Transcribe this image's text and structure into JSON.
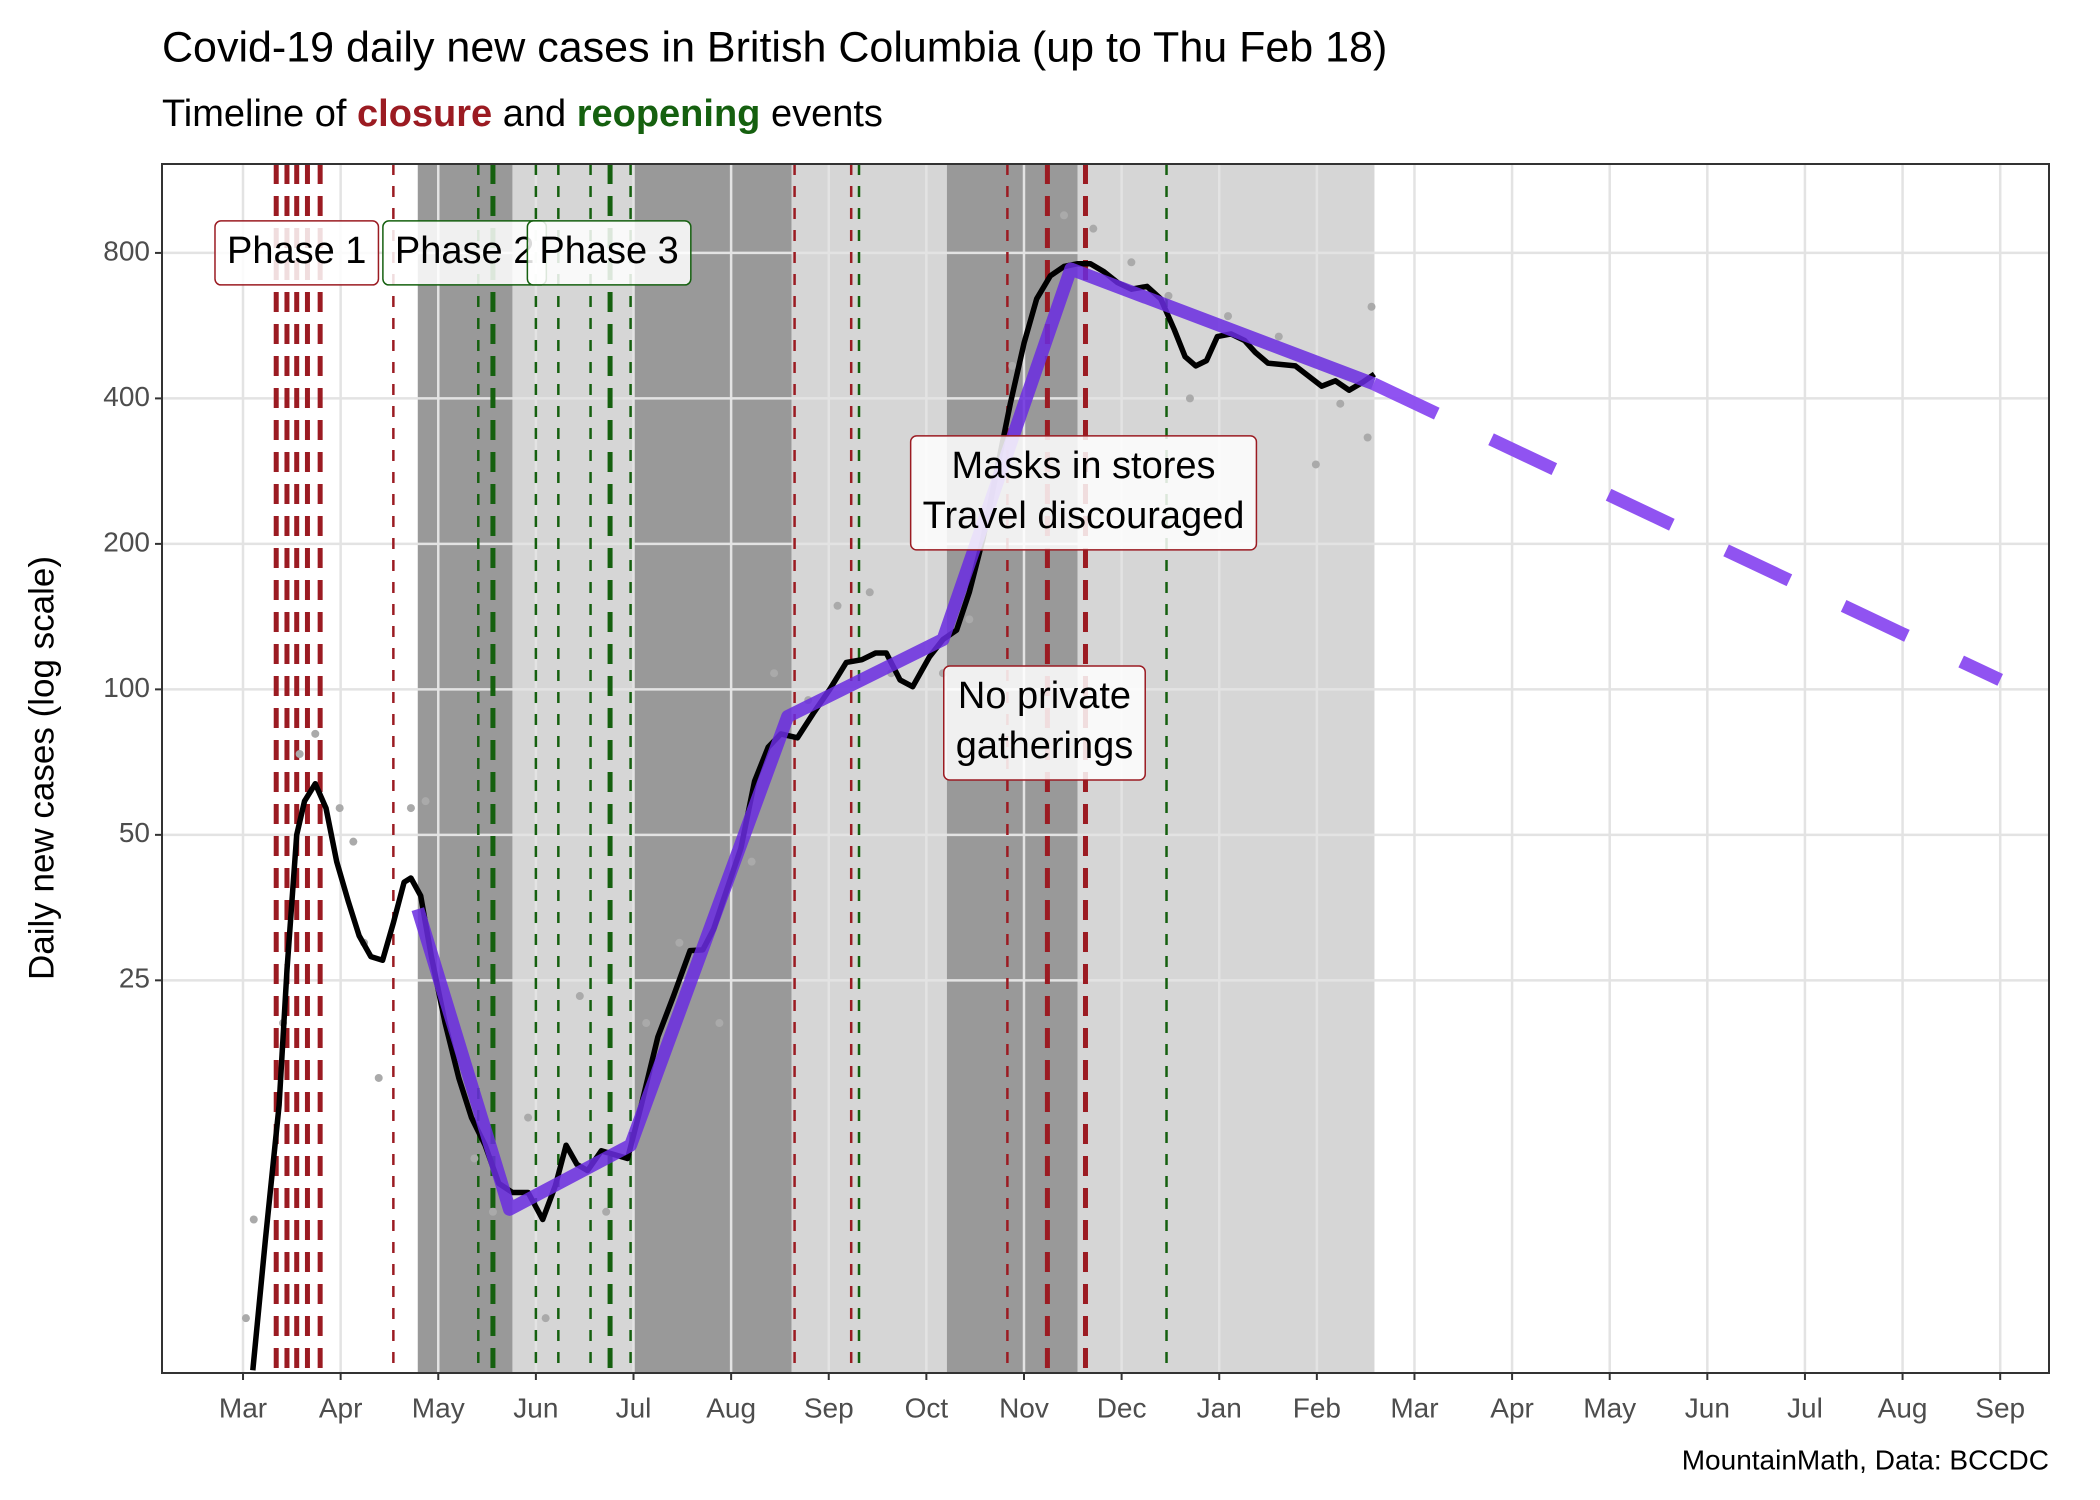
{
  "chart_data": {
    "type": "line",
    "title": "Covid-19 daily new cases in British Columbia (up to Thu Feb 18)",
    "subtitle": [
      {
        "text": "Timeline of "
      },
      {
        "text": "closure",
        "color": "#9b1b22",
        "bold": true
      },
      {
        "text": " and "
      },
      {
        "text": "reopening",
        "color": "#15600f",
        "bold": true
      },
      {
        "text": " events"
      }
    ],
    "y_label": "Daily new cases (log scale)",
    "caption": "MountainMath, Data: BCCDC",
    "log_y": true,
    "grid": true,
    "xlim": [
      -0.83,
      18.5
    ],
    "ylim": [
      3.85,
      1222
    ],
    "xticks": [
      {
        "value": 0,
        "label": "Mar"
      },
      {
        "value": 1,
        "label": "Apr"
      },
      {
        "value": 2,
        "label": "May"
      },
      {
        "value": 3,
        "label": "Jun"
      },
      {
        "value": 4,
        "label": "Jul"
      },
      {
        "value": 5,
        "label": "Aug"
      },
      {
        "value": 6,
        "label": "Sep"
      },
      {
        "value": 7,
        "label": "Oct"
      },
      {
        "value": 8,
        "label": "Nov"
      },
      {
        "value": 9,
        "label": "Dec"
      },
      {
        "value": 10,
        "label": "Jan"
      },
      {
        "value": 11,
        "label": "Feb"
      },
      {
        "value": 12,
        "label": "Mar"
      },
      {
        "value": 13,
        "label": "Apr"
      },
      {
        "value": 14,
        "label": "May"
      },
      {
        "value": 15,
        "label": "Jun"
      },
      {
        "value": 16,
        "label": "Jul"
      },
      {
        "value": 17,
        "label": "Aug"
      },
      {
        "value": 18,
        "label": "Sep"
      }
    ],
    "yticks": [
      25,
      50,
      100,
      200,
      400,
      800
    ],
    "periods": [
      {
        "from": 1.79,
        "to": 2.76,
        "color": "#999999"
      },
      {
        "from": 2.76,
        "to": 4.0,
        "color": "#d6d6d6"
      },
      {
        "from": 4.0,
        "to": 5.62,
        "color": "#999999"
      },
      {
        "from": 5.62,
        "to": 7.21,
        "color": "#d6d6d6"
      },
      {
        "from": 7.21,
        "to": 8.55,
        "color": "#999999"
      },
      {
        "from": 8.55,
        "to": 11.59,
        "color": "#d6d6d6"
      }
    ],
    "events": [
      {
        "x": 0.34,
        "color": "#9b1b22",
        "width": 5
      },
      {
        "x": 0.45,
        "color": "#9b1b22",
        "width": 5
      },
      {
        "x": 0.55,
        "color": "#9b1b22",
        "width": 5
      },
      {
        "x": 0.66,
        "color": "#9b1b22",
        "width": 5
      },
      {
        "x": 0.79,
        "color": "#9b1b22",
        "width": 5
      },
      {
        "x": 1.54,
        "color": "#9b1b22",
        "width": 2.5
      },
      {
        "x": 2.41,
        "color": "#15600f",
        "width": 2.5
      },
      {
        "x": 2.56,
        "color": "#15600f",
        "width": 5
      },
      {
        "x": 3.0,
        "color": "#15600f",
        "width": 2.5
      },
      {
        "x": 3.23,
        "color": "#15600f",
        "width": 2.5
      },
      {
        "x": 3.56,
        "color": "#15600f",
        "width": 2.5
      },
      {
        "x": 3.76,
        "color": "#15600f",
        "width": 5
      },
      {
        "x": 3.97,
        "color": "#15600f",
        "width": 2.5
      },
      {
        "x": 5.65,
        "color": "#9b1b22",
        "width": 2.5
      },
      {
        "x": 6.23,
        "color": "#9b1b22",
        "width": 2.5
      },
      {
        "x": 6.31,
        "color": "#15600f",
        "width": 2.5
      },
      {
        "x": 7.83,
        "color": "#9b1b22",
        "width": 2.5
      },
      {
        "x": 8.24,
        "color": "#9b1b22",
        "width": 5
      },
      {
        "x": 8.63,
        "color": "#9b1b22",
        "width": 5
      },
      {
        "x": 9.46,
        "color": "#15600f",
        "width": 2.5
      }
    ],
    "series": [
      {
        "kind": "points",
        "color": "#aaaaaa",
        "x": [
          0.03,
          0.11,
          0.41,
          0.58,
          0.74,
          0.99,
          1.13,
          1.24,
          1.39,
          1.72,
          1.87,
          2.15,
          2.37,
          2.56,
          2.92,
          3.1,
          3.45,
          3.72,
          4.13,
          4.47,
          4.88,
          5.21,
          5.44,
          5.79,
          6.09,
          6.42,
          6.64,
          7.17,
          7.44,
          7.88,
          8.41,
          8.71,
          9.1,
          9.48,
          9.7,
          10.09,
          10.61,
          10.99,
          11.24,
          11.52,
          11.56
        ],
        "values": [
          5.0,
          8.0,
          20.4,
          73.5,
          80.9,
          56.8,
          48.4,
          29.9,
          15.7,
          56.8,
          58.7,
          17.9,
          10.7,
          8.3,
          13.0,
          5.0,
          23.2,
          8.3,
          20.4,
          29.9,
          20.4,
          44.0,
          108.0,
          95.0,
          148.9,
          158.8,
          108.0,
          108.0,
          139.6,
          467,
          957,
          898,
          765,
          652,
          400,
          592,
          537,
          292,
          390,
          332,
          619
        ]
      },
      {
        "kind": "line",
        "color": "#000000",
        "width": 5.5,
        "x": [
          0.1,
          0.23,
          0.37,
          0.45,
          0.55,
          0.63,
          0.74,
          0.85,
          0.96,
          1.08,
          1.19,
          1.31,
          1.43,
          1.54,
          1.65,
          1.72,
          1.82,
          1.93,
          2.07,
          2.21,
          2.34,
          2.48,
          2.62,
          2.76,
          2.92,
          3.07,
          3.2,
          3.31,
          3.42,
          3.53,
          3.67,
          3.94,
          4.08,
          4.25,
          4.41,
          4.58,
          4.71,
          4.82,
          4.96,
          5.1,
          5.24,
          5.38,
          5.51,
          5.68,
          5.84,
          6.01,
          6.18,
          6.34,
          6.48,
          6.59,
          6.73,
          6.86,
          7.03,
          7.17,
          7.31,
          7.44,
          7.58,
          7.72,
          7.86,
          8.0,
          8.13,
          8.27,
          8.41,
          8.55,
          8.68,
          8.82,
          8.96,
          9.1,
          9.26,
          9.4,
          9.54,
          9.65,
          9.76,
          9.87,
          9.98,
          10.12,
          10.26,
          10.37,
          10.5,
          10.78,
          11.05,
          11.19,
          11.33,
          11.47,
          11.59
        ],
        "values": [
          3.9,
          7.3,
          13.8,
          26.3,
          50,
          58.7,
          63.8,
          56.8,
          44.0,
          36.3,
          30.9,
          28.0,
          27.5,
          32.9,
          39.9,
          40.7,
          37.4,
          28.0,
          20.4,
          15.7,
          13.0,
          11.4,
          9.5,
          9.1,
          9.1,
          8.0,
          9.4,
          11.4,
          10.4,
          10.1,
          11.1,
          10.7,
          13.8,
          19.1,
          23.2,
          28.8,
          28.9,
          31.9,
          38.7,
          46.9,
          64.6,
          75.9,
          80.9,
          79.4,
          89.1,
          100,
          113.7,
          115.2,
          118.9,
          118.9,
          104.6,
          101.3,
          116.6,
          126.8,
          132.6,
          158.8,
          205,
          283,
          390,
          520,
          643,
          717,
          750,
          760,
          760,
          731,
          694,
          673,
          682,
          643,
          555,
          488,
          467,
          479,
          537,
          544,
          527,
          498,
          473,
          467,
          424,
          435,
          416,
          432,
          449
        ]
      },
      {
        "kind": "line",
        "color": "#6a2be0",
        "width": 13,
        "opacity": 0.85,
        "x": [
          1.79,
          2.73,
          3.97,
          5.58,
          7.17,
          8.48,
          11.58
        ],
        "values": [
          35.1,
          8.4,
          11.4,
          87.9,
          126.8,
          741,
          429
        ]
      },
      {
        "kind": "line",
        "color": "#8a4af0",
        "width": 13,
        "opacity": 0.95,
        "dash": true,
        "x": [
          11.58,
          18.0
        ],
        "values": [
          429,
          104.6
        ]
      }
    ],
    "annotations": [
      {
        "lines": [
          "Phase 1"
        ],
        "x": 0.55,
        "y": 800,
        "color": "#9b1b22"
      },
      {
        "lines": [
          "Phase 2"
        ],
        "x": 2.27,
        "y": 800,
        "color": "#15600f"
      },
      {
        "lines": [
          "Phase 3"
        ],
        "x": 3.75,
        "y": 800,
        "color": "#15600f"
      },
      {
        "lines": [
          "Masks in stores",
          "Travel discouraged"
        ],
        "x": 8.61,
        "y": 255,
        "color": "#9b1b22"
      },
      {
        "lines": [
          "No private",
          "gatherings"
        ],
        "x": 8.21,
        "y": 85.2,
        "color": "#9b1b22"
      }
    ]
  }
}
